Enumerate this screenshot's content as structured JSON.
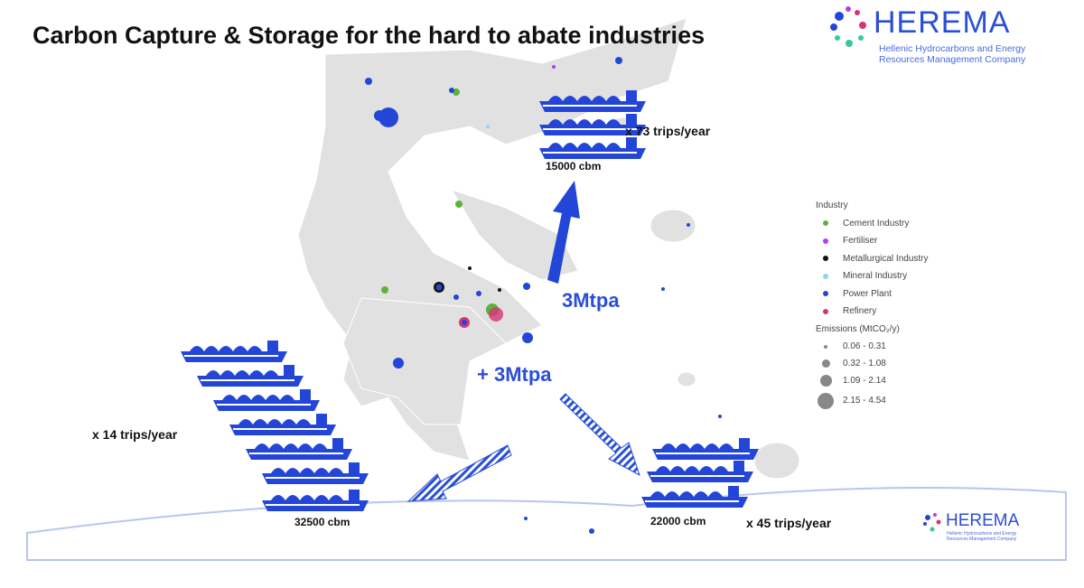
{
  "title": "Carbon Capture & Storage for the hard to abate industries",
  "logo": {
    "name": "HEREMA",
    "subtitle_line1": "Hellenic Hydrocarbons and Energy",
    "subtitle_line2": "Resources Management Company"
  },
  "logo_small": {
    "name": "HEREMA",
    "subtitle_line1": "Hellenic Hydrocarbons and Energy",
    "subtitle_line2": "Resources Management Company"
  },
  "routes": [
    {
      "capacity": "15000 cbm",
      "trips": "x 73 trips/year",
      "ships": 3
    },
    {
      "capacity": "32500 cbm",
      "trips": "x 14 trips/year",
      "ships": 6
    },
    {
      "capacity": "22000 cbm",
      "trips": "x 45 trips/year",
      "ships": 3
    }
  ],
  "volumes": {
    "north": "3Mtpa",
    "south": "+ 3Mtpa"
  },
  "legend": {
    "industry_title": "Industry",
    "industries": [
      {
        "label": "Cement Industry",
        "color": "#5db33a"
      },
      {
        "label": "Fertiliser",
        "color": "#b63ee8"
      },
      {
        "label": "Metallurgical Industry",
        "color": "#111111"
      },
      {
        "label": "Mineral Industry",
        "color": "#8fd6f2"
      },
      {
        "label": "Power Plant",
        "color": "#2446d8"
      },
      {
        "label": "Refinery",
        "color": "#d8337a"
      }
    ],
    "emissions_title": "Emissions (MtCO₂/y)",
    "emissions": [
      "0.06 - 0.31",
      "0.32 - 1.08",
      "1.09 - 2.14",
      "2.15 - 4.54"
    ]
  },
  "colors": {
    "ship": "#2446d8",
    "land": "#e1e1e1",
    "arrow": "#2a4fd6"
  }
}
